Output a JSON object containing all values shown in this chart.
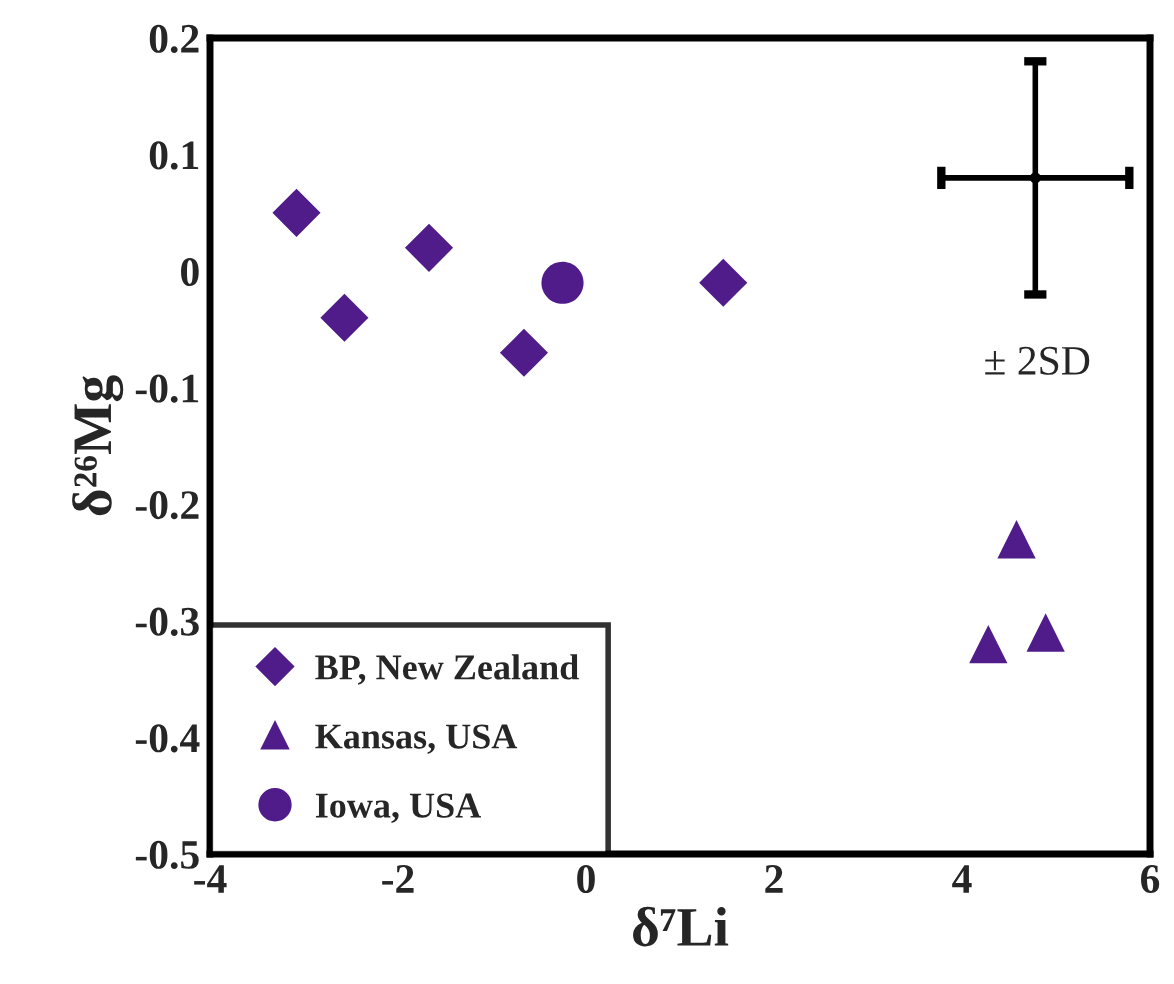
{
  "chart_data": {
    "type": "scatter",
    "xlabel": "δ⁷Li",
    "ylabel": "δ²⁶Mg",
    "series": [
      {
        "name": "BP, New Zealand",
        "color": "#4f1c8a",
        "marker": "diamond",
        "x": [
          -3.08,
          -2.57,
          -1.67,
          -0.66,
          1.46
        ],
        "values": [
          0.05,
          -0.04,
          0.02,
          -0.07,
          -0.01
        ]
      },
      {
        "name": "Kansas, USA",
        "color": "#4f1c8a",
        "marker": "triangle",
        "x": [
          4.58,
          4.28,
          4.89
        ],
        "values": [
          -0.23,
          -0.32,
          -0.31
        ]
      },
      {
        "name": "Iowa, USA",
        "color": "#4f1c8a",
        "marker": "circle",
        "x": [
          -0.25
        ],
        "values": [
          -0.01
        ]
      },
      {
        "color": "#000000",
        "x": [
          4.78
        ],
        "values": [
          0.08
        ],
        "errors": [
          0.1
        ],
        "xerrors": [
          1.0
        ]
      }
    ],
    "annotations": [
      "± 2SD"
    ],
    "xlim": [
      -4,
      6
    ],
    "xticks": [
      -4,
      -2,
      0,
      2,
      4,
      6
    ],
    "ylim": [
      -0.5,
      0.2
    ],
    "yticks": [
      -0.5,
      -0.4,
      -0.3,
      -0.2,
      -0.1,
      0,
      0.1,
      0.2
    ],
    "grid": false,
    "legend": "bottom left"
  }
}
